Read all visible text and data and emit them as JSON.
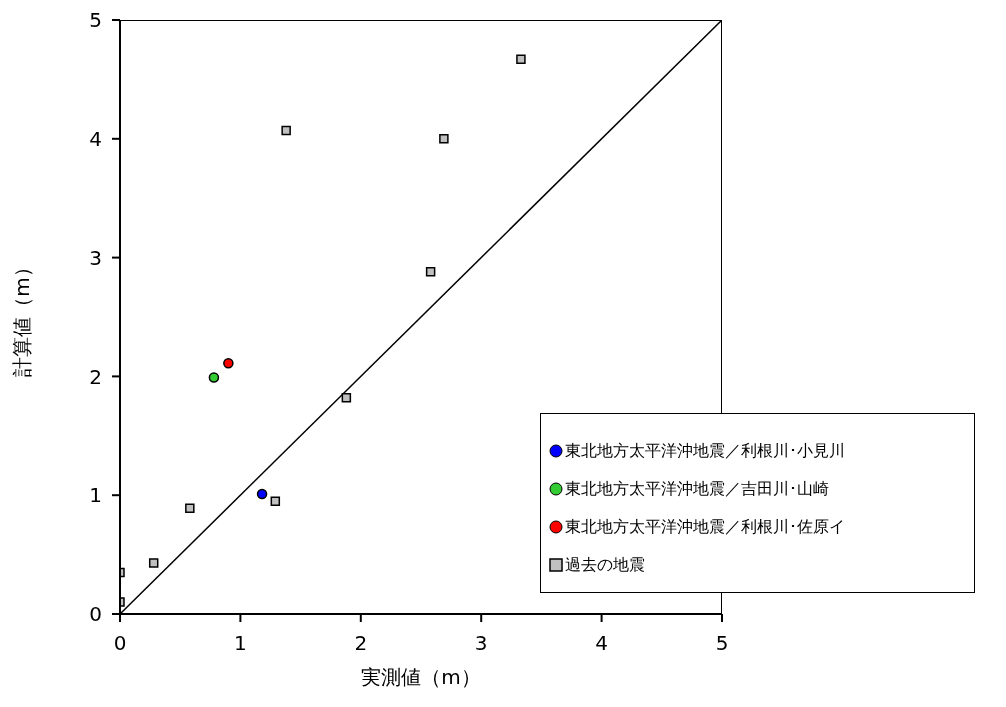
{
  "chart_data": {
    "type": "scatter",
    "xlabel": "実測値（m）",
    "ylabel": "計算値（m）",
    "xlim": [
      0,
      5
    ],
    "ylim": [
      0,
      5
    ],
    "xticks": [
      0,
      1,
      2,
      3,
      4,
      5
    ],
    "yticks": [
      0,
      1,
      2,
      3,
      4,
      5
    ],
    "grid": false,
    "legend": "bottom right",
    "series": [
      {
        "name": "東北地方太平洋沖地震／利根川･小見川",
        "color": "#0000ff",
        "marker": "circle",
        "x": [
          1.18
        ],
        "values": [
          1.01
        ]
      },
      {
        "name": "東北地方太平洋沖地震／吉田川･山崎",
        "color": "#33cc33",
        "marker": "circle",
        "x": [
          0.78
        ],
        "values": [
          1.99
        ]
      },
      {
        "name": "東北地方太平洋沖地震／利根川･佐原イ",
        "color": "#ff0000",
        "marker": "circle",
        "x": [
          0.9
        ],
        "values": [
          2.11
        ]
      },
      {
        "name": "過去の地震",
        "color": "#c0c0c0",
        "marker": "square",
        "x": [
          0,
          0,
          0.28,
          0.58,
          1.29,
          1.88,
          2.58,
          1.38,
          2.69,
          3.33
        ],
        "values": [
          0.1,
          0.35,
          0.43,
          0.89,
          0.95,
          1.82,
          2.88,
          4.07,
          4.0,
          4.67
        ]
      },
      {
        "type": "line",
        "color": "#000000",
        "marker": "none",
        "line_style": "solid",
        "x": [
          0,
          5
        ],
        "values": [
          0,
          5
        ]
      }
    ]
  }
}
